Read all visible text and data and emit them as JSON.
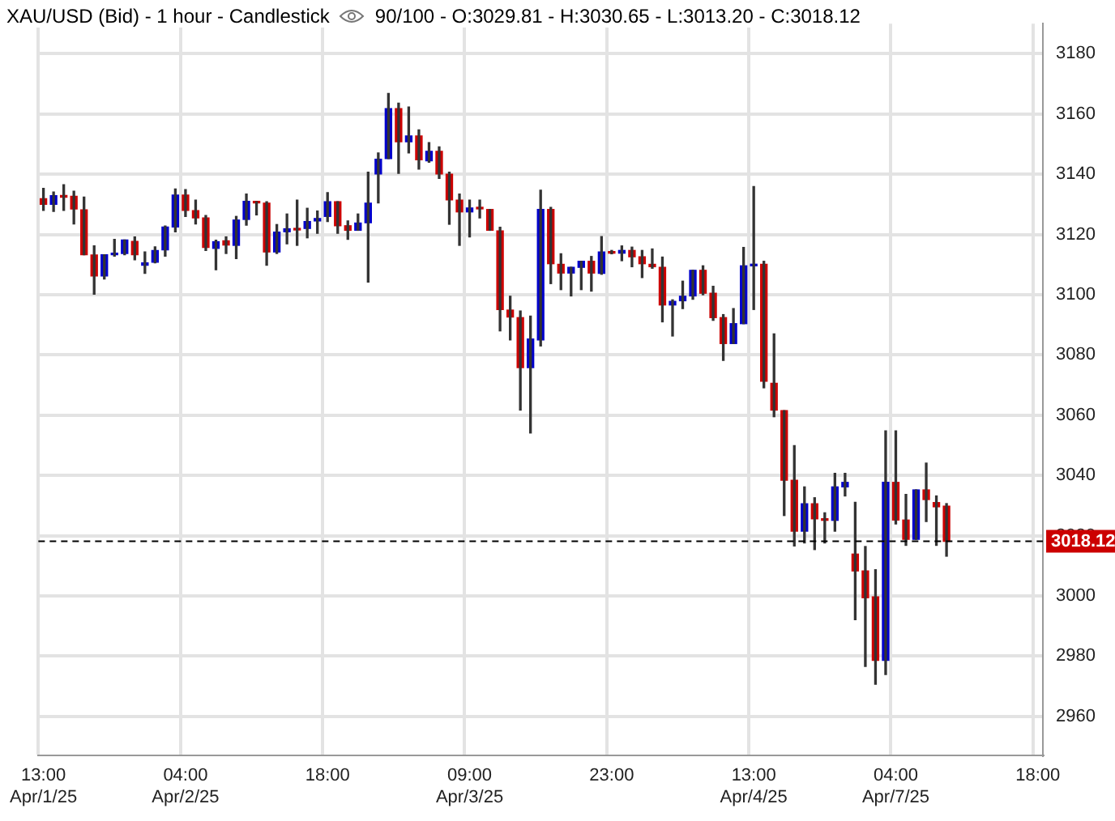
{
  "chart_data": {
    "type": "candlestick",
    "title": "XAU/USD (Bid) - 1 hour - Candlestick",
    "subtitle": "90/100 - O:3029.81 - H:3030.65 - L:3013.20 - C:3018.12",
    "categories": [
      "13:00\nApr/1/25",
      null,
      null,
      null,
      null,
      null,
      null,
      null,
      null,
      null,
      null,
      null,
      null,
      null,
      "04:00\nApr/2/25",
      null,
      null,
      null,
      null,
      null,
      null,
      null,
      null,
      null,
      null,
      null,
      null,
      null,
      "18:00",
      null,
      null,
      null,
      null,
      null,
      null,
      null,
      null,
      null,
      null,
      null,
      null,
      null,
      "09:00\nApr/3/25",
      null,
      null,
      null,
      null,
      null,
      null,
      null,
      null,
      null,
      null,
      null,
      null,
      null,
      "23:00",
      null,
      null,
      null,
      null,
      null,
      null,
      null,
      null,
      null,
      null,
      null,
      null,
      null,
      "13:00\nApr/4/25",
      null,
      null,
      null,
      null,
      null,
      null,
      null,
      null,
      null,
      null,
      null,
      null,
      null,
      "04:00\nApr/7/25",
      null,
      null,
      null,
      null,
      null,
      null,
      null,
      null,
      null,
      null,
      null,
      null,
      null,
      "18:00"
    ],
    "ohlc": [
      [
        3131.9,
        3135.3,
        3128.0,
        3130.0
      ],
      [
        3130.0,
        3134.1,
        3127.7,
        3132.9
      ],
      [
        3132.8,
        3136.5,
        3128.0,
        3132.4
      ],
      [
        3132.7,
        3134.4,
        3123.5,
        3128.5
      ],
      [
        3128.2,
        3132.4,
        3113.3,
        3113.3
      ],
      [
        3113.2,
        3116.2,
        3100.2,
        3106.2
      ],
      [
        3106.2,
        3113.3,
        3105.2,
        3113.3
      ],
      [
        3113.3,
        3118.4,
        3112.8,
        3113.6
      ],
      [
        3113.7,
        3118.2,
        3113.3,
        3118.2
      ],
      [
        3117.7,
        3119.2,
        3111.6,
        3113.3
      ],
      [
        3109.8,
        3114.2,
        3107.1,
        3110.6
      ],
      [
        3110.8,
        3115.9,
        3110.6,
        3114.7
      ],
      [
        3114.9,
        3122.8,
        3112.8,
        3122.5
      ],
      [
        3122.5,
        3135.1,
        3120.9,
        3133.1
      ],
      [
        3133.1,
        3134.9,
        3126.0,
        3128.0
      ],
      [
        3127.9,
        3131.4,
        3123.5,
        3125.5
      ],
      [
        3125.5,
        3126.3,
        3114.7,
        3115.7
      ],
      [
        3115.4,
        3118.1,
        3108.3,
        3117.6
      ],
      [
        3117.9,
        3119.2,
        3113.7,
        3116.5
      ],
      [
        3116.4,
        3126.0,
        3112.0,
        3124.8
      ],
      [
        3125.0,
        3133.4,
        3123.1,
        3131.0
      ],
      [
        3130.9,
        3130.9,
        3126.5,
        3130.5
      ],
      [
        3130.4,
        3130.9,
        3109.8,
        3114.2
      ],
      [
        3114.2,
        3123.3,
        3113.7,
        3120.8
      ],
      [
        3120.9,
        3126.8,
        3116.9,
        3121.9
      ],
      [
        3121.8,
        3131.4,
        3116.4,
        3121.5
      ],
      [
        3122.0,
        3128.7,
        3118.9,
        3124.3
      ],
      [
        3124.5,
        3127.8,
        3120.4,
        3125.3
      ],
      [
        3126.0,
        3133.9,
        3124.3,
        3130.9
      ],
      [
        3130.9,
        3130.9,
        3120.4,
        3122.9
      ],
      [
        3122.9,
        3124.5,
        3118.4,
        3121.4
      ],
      [
        3121.4,
        3126.8,
        3121.4,
        3123.8
      ],
      [
        3123.9,
        3140.7,
        3104.2,
        3130.4
      ],
      [
        3140.1,
        3147.1,
        3130.5,
        3145.0
      ],
      [
        3145.2,
        3166.8,
        3145.2,
        3161.8
      ],
      [
        3161.8,
        3163.6,
        3140.3,
        3150.8
      ],
      [
        3150.8,
        3162.3,
        3147.1,
        3152.7
      ],
      [
        3152.7,
        3154.7,
        3141.7,
        3144.8
      ],
      [
        3144.5,
        3150.5,
        3144.0,
        3147.6
      ],
      [
        3147.6,
        3149.1,
        3138.6,
        3140.1
      ],
      [
        3140.0,
        3140.7,
        3123.4,
        3131.5
      ],
      [
        3131.4,
        3133.4,
        3116.4,
        3127.5
      ],
      [
        3127.5,
        3131.4,
        3119.2,
        3128.8
      ],
      [
        3128.8,
        3131.4,
        3125.5,
        3128.5
      ],
      [
        3128.3,
        3128.3,
        3121.4,
        3121.4
      ],
      [
        3121.2,
        3122.4,
        3088.0,
        3095.1
      ],
      [
        3094.9,
        3099.5,
        3085.0,
        3092.6
      ],
      [
        3092.4,
        3094.6,
        3061.7,
        3075.8
      ],
      [
        3075.8,
        3092.9,
        3054.1,
        3085.3
      ],
      [
        3085.0,
        3134.7,
        3083.0,
        3128.3
      ],
      [
        3128.3,
        3129.0,
        3103.7,
        3110.3
      ],
      [
        3110.1,
        3113.6,
        3101.7,
        3107.2
      ],
      [
        3107.2,
        3109.1,
        3099.6,
        3109.1
      ],
      [
        3109.1,
        3111.1,
        3101.7,
        3111.1
      ],
      [
        3111.1,
        3112.7,
        3101.2,
        3107.2
      ],
      [
        3107.1,
        3119.3,
        3106.8,
        3114.2
      ],
      [
        3114.2,
        3114.7,
        3113.6,
        3113.8
      ],
      [
        3113.8,
        3116.2,
        3111.3,
        3114.7
      ],
      [
        3114.7,
        3115.8,
        3109.3,
        3112.6
      ],
      [
        3112.6,
        3114.7,
        3105.7,
        3110.3
      ],
      [
        3110.1,
        3115.2,
        3108.8,
        3109.3
      ],
      [
        3109.1,
        3112.5,
        3091.0,
        3096.6
      ],
      [
        3096.6,
        3098.3,
        3086.3,
        3097.8
      ],
      [
        3098.0,
        3104.5,
        3095.4,
        3099.5
      ],
      [
        3099.6,
        3108.1,
        3098.5,
        3108.1
      ],
      [
        3108.1,
        3109.6,
        3100.0,
        3100.5
      ],
      [
        3100.5,
        3102.8,
        3091.5,
        3092.4
      ],
      [
        3092.4,
        3093.4,
        3078.2,
        3083.8
      ],
      [
        3083.8,
        3095.4,
        3083.8,
        3090.4
      ],
      [
        3090.4,
        3115.7,
        3090.4,
        3109.6
      ],
      [
        3109.6,
        3135.9,
        3095.1,
        3109.8
      ],
      [
        3110.1,
        3111.1,
        3069.1,
        3071.3
      ],
      [
        3070.6,
        3087.0,
        3059.5,
        3061.7
      ],
      [
        3061.5,
        3061.5,
        3026.7,
        3038.4
      ],
      [
        3038.4,
        3049.9,
        3016.6,
        3021.5
      ],
      [
        3021.5,
        3036.2,
        3017.6,
        3030.6
      ],
      [
        3030.6,
        3032.6,
        3015.4,
        3025.6
      ],
      [
        3025.6,
        3027.6,
        3017.6,
        3025.1
      ],
      [
        3025.1,
        3040.7,
        3021.5,
        3036.2
      ],
      [
        3036.2,
        3040.7,
        3033.2,
        3037.7
      ],
      [
        3013.9,
        3031.1,
        2992.1,
        3008.3
      ],
      [
        3008.3,
        3016.4,
        2976.6,
        2999.4
      ],
      [
        2999.7,
        3008.7,
        2970.7,
        2978.6
      ],
      [
        2978.6,
        3054.8,
        2973.9,
        3037.7
      ],
      [
        3037.7,
        3054.8,
        3023.9,
        3025.2
      ],
      [
        3025.2,
        3033.7,
        3016.8,
        3018.8
      ],
      [
        3018.8,
        3035.2,
        3018.8,
        3035.2
      ],
      [
        3035.2,
        3044.1,
        3024.7,
        3032.0
      ],
      [
        3031.0,
        3033.2,
        3016.8,
        3029.6
      ],
      [
        3029.81,
        3030.65,
        3013.2,
        3018.12
      ],
      null,
      null,
      null,
      null,
      null,
      null,
      null,
      null,
      null
    ],
    "colors": [
      "#cc0000",
      "#0000cc",
      "#cc0000",
      "#cc0000",
      "#cc0000",
      "#cc0000",
      "#0000cc",
      "#0000cc",
      "#0000cc",
      "#cc0000",
      "#0000cc",
      "#0000cc",
      "#0000cc",
      "#0000cc",
      "#cc0000",
      "#cc0000",
      "#cc0000",
      "#0000cc",
      "#cc0000",
      "#0000cc",
      "#0000cc",
      "#cc0000",
      "#cc0000",
      "#0000cc",
      "#0000cc",
      "#cc0000",
      "#0000cc",
      "#0000cc",
      "#0000cc",
      "#cc0000",
      "#cc0000",
      "#0000cc",
      "#0000cc",
      "#0000cc",
      "#0000cc",
      "#cc0000",
      "#0000cc",
      "#cc0000",
      "#0000cc",
      "#cc0000",
      "#cc0000",
      "#cc0000",
      "#0000cc",
      "#cc0000",
      "#cc0000",
      "#cc0000",
      "#cc0000",
      "#cc0000",
      "#0000cc",
      "#0000cc",
      "#cc0000",
      "#cc0000",
      "#0000cc",
      "#0000cc",
      "#cc0000",
      "#0000cc",
      "#cc0000",
      "#0000cc",
      "#cc0000",
      "#cc0000",
      "#cc0000",
      "#cc0000",
      "#0000cc",
      "#0000cc",
      "#0000cc",
      "#cc0000",
      "#cc0000",
      "#cc0000",
      "#0000cc",
      "#0000cc",
      "#0000cc",
      "#cc0000",
      "#cc0000",
      "#cc0000",
      "#cc0000",
      "#0000cc",
      "#cc0000",
      "#cc0000",
      "#0000cc",
      "#0000cc",
      "#cc0000",
      "#cc0000",
      "#cc0000",
      "#0000cc",
      "#cc0000",
      "#cc0000",
      "#0000cc",
      "#cc0000",
      "#cc0000",
      "#cc0000",
      null,
      null,
      null,
      null,
      null,
      null,
      null,
      null,
      null
    ],
    "ylim": [
      2947,
      3190
    ],
    "yticks": [
      2960,
      2980,
      3000,
      3020,
      3040,
      3060,
      3080,
      3100,
      3120,
      3140,
      3160,
      3180
    ],
    "grid": true,
    "ref_lines": [
      {
        "axis": "y",
        "value": 3018.12,
        "label": "3018.12",
        "line_style": "dashed"
      }
    ]
  }
}
